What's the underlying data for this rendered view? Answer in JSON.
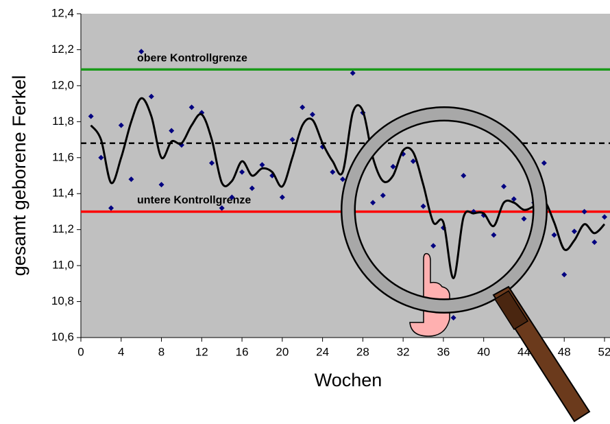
{
  "chart_data": {
    "type": "scatter",
    "xlabel": "Wochen",
    "ylabel": "gesamt geborene Ferkel",
    "xlim": [
      0,
      52
    ],
    "xticks": [
      0,
      4,
      8,
      12,
      16,
      20,
      24,
      28,
      32,
      36,
      40,
      44,
      48,
      52
    ],
    "ylim": [
      10.6,
      12.4
    ],
    "yticks": [
      {
        "value": 10.6,
        "label": "10,6"
      },
      {
        "value": 10.8,
        "label": "10,8"
      },
      {
        "value": 11.0,
        "label": "11,0"
      },
      {
        "value": 11.2,
        "label": "11,2"
      },
      {
        "value": 11.4,
        "label": "11,4"
      },
      {
        "value": 11.6,
        "label": "11,6"
      },
      {
        "value": 11.8,
        "label": "11,8"
      },
      {
        "value": 12.0,
        "label": "12,0"
      },
      {
        "value": 12.2,
        "label": "12,2"
      },
      {
        "value": 12.4,
        "label": "12,4"
      }
    ],
    "background": "#c0c0c0",
    "x": [
      1,
      2,
      3,
      4,
      5,
      6,
      7,
      8,
      9,
      10,
      11,
      12,
      13,
      14,
      15,
      16,
      17,
      18,
      19,
      20,
      21,
      22,
      23,
      24,
      25,
      26,
      27,
      28,
      29,
      30,
      31,
      32,
      33,
      34,
      35,
      36,
      37,
      38,
      39,
      40,
      41,
      42,
      43,
      44,
      45,
      46,
      47,
      48,
      49,
      50,
      51,
      52
    ],
    "series": [
      {
        "color": "#000080",
        "values": [
          11.83,
          11.6,
          11.32,
          11.78,
          11.48,
          12.19,
          11.94,
          11.45,
          11.75,
          11.67,
          11.88,
          11.85,
          11.57,
          11.32,
          11.38,
          11.52,
          11.43,
          11.56,
          11.5,
          11.38,
          11.7,
          11.88,
          11.84,
          11.66,
          11.52,
          11.48,
          12.07,
          11.85,
          11.35,
          11.39,
          11.55,
          11.62,
          11.58,
          11.33,
          11.11,
          11.21,
          10.71,
          11.5,
          11.3,
          11.28,
          11.17,
          11.44,
          11.37,
          11.26,
          11.35,
          11.57,
          11.17,
          10.95,
          11.19,
          11.3,
          11.13,
          11.27
        ]
      },
      {
        "color": "#000000",
        "line": true,
        "values": [
          11.78,
          11.7,
          11.46,
          11.6,
          11.8,
          11.93,
          11.83,
          11.6,
          11.69,
          11.68,
          11.78,
          11.84,
          11.7,
          11.46,
          11.47,
          11.58,
          11.5,
          11.54,
          11.52,
          11.44,
          11.6,
          11.78,
          11.81,
          11.68,
          11.58,
          11.52,
          11.85,
          11.86,
          11.6,
          11.47,
          11.5,
          11.64,
          11.63,
          11.45,
          11.24,
          11.24,
          10.93,
          11.27,
          11.29,
          11.29,
          11.22,
          11.35,
          11.35,
          11.31,
          11.33,
          11.36,
          11.24,
          11.09,
          11.14,
          11.23,
          11.18,
          11.23
        ]
      }
    ],
    "hlines": [
      {
        "value": 11.68,
        "color": "#000000",
        "dashed": true
      },
      {
        "value": 12.09,
        "color": "#1a9a1a",
        "label": "obere Kontrollgrenze"
      },
      {
        "value": 11.3,
        "color": "#ff0000",
        "label": "untere Kontrollgrenze"
      }
    ]
  }
}
